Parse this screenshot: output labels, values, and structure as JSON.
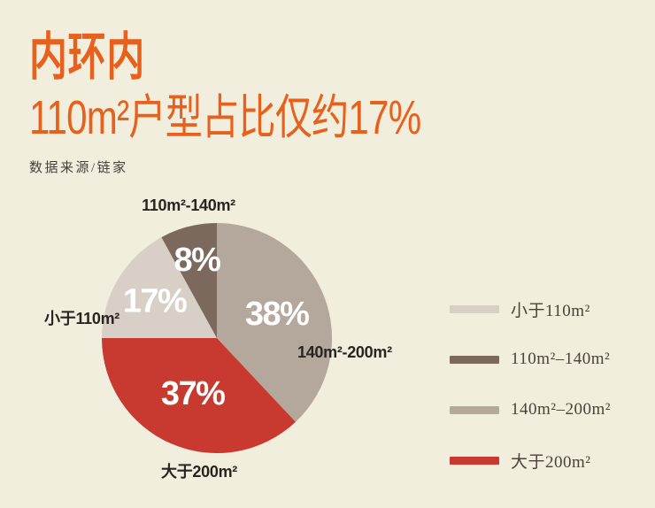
{
  "colors": {
    "background": "#f1eedd",
    "accent": "#e7611c",
    "callout_ink": "#2a241f",
    "legend_ink": "#4a4238",
    "percent_ink": "#ffffff"
  },
  "header": {
    "title": "内环内",
    "subtitle": "110m²户型占比仅约17%",
    "source": "数据来源/链家"
  },
  "chart_data": {
    "type": "pie",
    "title": "内环内110m²户型占比仅约17%",
    "source": "数据来源/链家",
    "unit": "%",
    "start_angle_deg": 0,
    "direction": "clockwise",
    "slices": [
      {
        "label": "140m²-200m²",
        "value": 38,
        "pct_label": "38%",
        "color": "#b4a79c",
        "label_r": 0.56
      },
      {
        "label": "大于200m²",
        "value": 37,
        "pct_label": "37%",
        "color": "#c8392f",
        "label_r": 0.53
      },
      {
        "label": "小于110m²",
        "value": 17,
        "pct_label": "17%",
        "color": "#d8cfc7",
        "label_r": 0.63
      },
      {
        "label": "110m²-140m²",
        "value": 8,
        "pct_label": "8%",
        "color": "#7a695c",
        "label_r": 0.7
      }
    ],
    "callouts": {
      "top": "110m²-140m²",
      "left": "小于110m²",
      "right": "140m²-200m²",
      "bottom": "大于200m²"
    },
    "legend": [
      {
        "label": "小于110m²",
        "color": "#d8cfc7"
      },
      {
        "label": "110m²–140m²",
        "color": "#7a695c"
      },
      {
        "label": "140m²–200m²",
        "color": "#b4a79c"
      },
      {
        "label": "大于200m²",
        "color": "#c8392f"
      }
    ]
  }
}
